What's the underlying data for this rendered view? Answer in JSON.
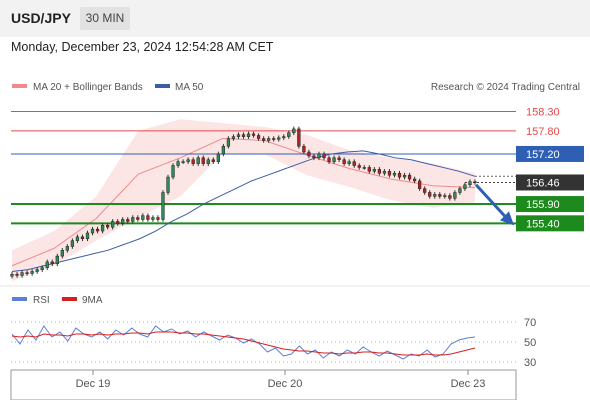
{
  "header": {
    "symbol": "USD/JPY",
    "timeframe": "30 MIN"
  },
  "datetime": "Monday, December 23, 2024 12:54:28 AM CET",
  "colors": {
    "resistance": "#e8474a",
    "support": "#1c8a1c",
    "pivot": "#2f5fb3",
    "ma20": "#f08a8a",
    "ma50": "#3b5da3",
    "rsi": "#5b7fd6",
    "rsi_ma": "#d62020",
    "arrow": "#2f5fb3",
    "bull": "#2e8b57",
    "bear": "#b22222"
  },
  "chart_data": [
    {
      "type": "candlestick",
      "title": "USD/JPY",
      "legend": [
        {
          "name": "MA 20 + Bollinger Bands",
          "color": "#f08a8a"
        },
        {
          "name": "MA 50",
          "color": "#3b5da3"
        }
      ],
      "watermark": "Research © 2024 Trading Central",
      "x_ticks": [
        "Dec 19",
        "Dec 20",
        "Dec 23"
      ],
      "ylim": [
        153.8,
        158.6
      ],
      "levels": [
        {
          "label": "158.30",
          "value": 158.3,
          "kind": "resistance"
        },
        {
          "label": "157.80",
          "value": 157.8,
          "kind": "resistance"
        },
        {
          "label": "157.20",
          "value": 157.2,
          "kind": "pivot"
        },
        {
          "label": "155.90",
          "value": 155.9,
          "kind": "support"
        },
        {
          "label": "155.40",
          "value": 155.4,
          "kind": "support"
        }
      ],
      "last_price": {
        "label": "156.46",
        "value": 156.46
      },
      "close": [
        154.08,
        154.05,
        154.12,
        154.1,
        154.15,
        154.2,
        154.25,
        154.4,
        154.35,
        154.55,
        154.7,
        154.8,
        154.95,
        155.05,
        155.0,
        155.15,
        155.25,
        155.2,
        155.35,
        155.3,
        155.45,
        155.4,
        155.5,
        155.45,
        155.55,
        155.5,
        155.6,
        155.5,
        155.55,
        155.5,
        156.2,
        156.6,
        156.9,
        157.0,
        157.0,
        157.05,
        156.95,
        157.1,
        156.95,
        157.05,
        157.0,
        157.2,
        157.4,
        157.6,
        157.65,
        157.7,
        157.65,
        157.72,
        157.68,
        157.6,
        157.55,
        157.6,
        157.58,
        157.62,
        157.65,
        157.75,
        157.85,
        157.4,
        157.25,
        157.15,
        157.1,
        157.2,
        157.1,
        157.0,
        157.1,
        157.05,
        156.95,
        157.0,
        156.9,
        156.85,
        156.85,
        156.75,
        156.8,
        156.7,
        156.75,
        156.65,
        156.7,
        156.6,
        156.65,
        156.55,
        156.5,
        156.3,
        156.2,
        156.1,
        156.15,
        156.1,
        156.12,
        156.05,
        156.2,
        156.3,
        156.4,
        156.48,
        156.46
      ],
      "ma50": [
        154.15,
        154.2,
        154.3,
        154.4,
        154.5,
        154.6,
        154.7,
        154.85,
        155.0,
        155.2,
        155.45,
        155.65,
        155.9,
        156.1,
        156.3,
        156.5,
        156.65,
        156.8,
        156.95,
        157.1,
        157.2,
        157.25,
        157.28,
        157.2,
        157.1,
        157.05,
        156.95,
        156.85,
        156.75,
        156.62
      ],
      "bollinger": {
        "upper": [
          154.7,
          155.2,
          156.1,
          157.8,
          158.1,
          158.0,
          157.9,
          157.7,
          157.3,
          157.1,
          156.95,
          156.7
        ],
        "lower": [
          153.9,
          154.3,
          154.95,
          155.55,
          156.1,
          157.2,
          157.2,
          156.65,
          156.35,
          156.0,
          155.8,
          155.95
        ]
      },
      "forecast": {
        "from": 156.4,
        "to": 155.45
      }
    },
    {
      "type": "line",
      "title": "RSI",
      "legend": [
        {
          "name": "RSI",
          "color": "#5b7fd6"
        },
        {
          "name": "9MA",
          "color": "#d62020"
        }
      ],
      "ylim": [
        20,
        80
      ],
      "y_ticks": [
        "70",
        "50",
        "30"
      ],
      "series": [
        {
          "name": "RSI",
          "values": [
            58,
            48,
            62,
            52,
            66,
            55,
            60,
            51,
            64,
            58,
            55,
            60,
            53,
            62,
            57,
            64,
            58,
            55,
            66,
            60,
            63,
            58,
            61,
            55,
            60,
            56,
            52,
            57,
            54,
            49,
            53,
            48,
            40,
            44,
            36,
            38,
            46,
            38,
            42,
            34,
            40,
            36,
            42,
            38,
            45,
            40,
            36,
            41,
            37,
            33,
            38,
            36,
            42,
            35,
            38,
            48,
            52,
            54,
            55
          ]
        },
        {
          "name": "9MA",
          "values": [
            56,
            55,
            56,
            55,
            58,
            57,
            57,
            56,
            58,
            58,
            57,
            58,
            57,
            58,
            58,
            59,
            59,
            58,
            60,
            60,
            60,
            59,
            59,
            58,
            58,
            57,
            56,
            55,
            54,
            53,
            51,
            49,
            47,
            45,
            43,
            42,
            41,
            41,
            40,
            39,
            39,
            38,
            39,
            39,
            40,
            40,
            39,
            39,
            38,
            37,
            37,
            37,
            38,
            37,
            37,
            38,
            40,
            42,
            44
          ]
        }
      ]
    }
  ]
}
